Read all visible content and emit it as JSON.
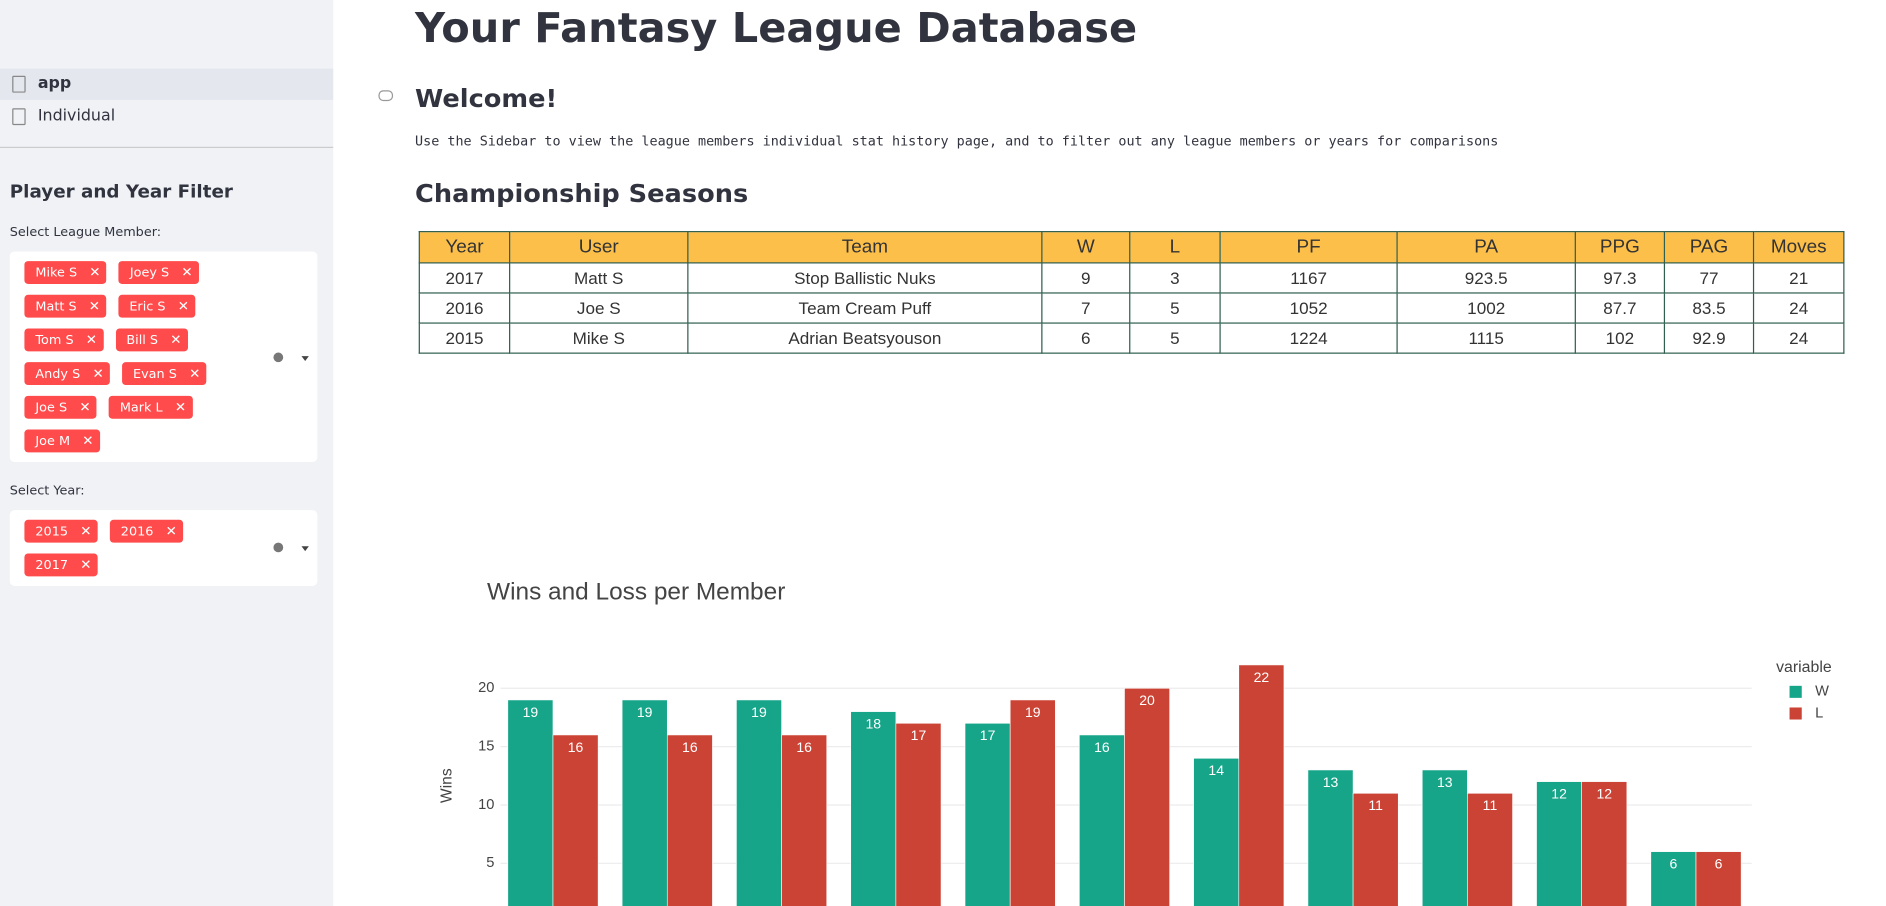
{
  "sidebar": {
    "nav": [
      "app",
      "Individual"
    ],
    "filter_title": "Player and Year Filter",
    "member_label": "Select League Member:",
    "members": [
      "Mike S",
      "Joey S",
      "Matt S",
      "Eric S",
      "Tom S",
      "Bill S",
      "Andy S",
      "Evan S",
      "Joe S",
      "Mark L",
      "Joe M"
    ],
    "year_label": "Select Year:",
    "years": [
      "2015",
      "2016",
      "2017"
    ]
  },
  "header": {
    "title": "Your Fantasy League Database",
    "welcome": "Welcome!",
    "description": "Use the Sidebar to view the league members individual stat history page, and to filter out any league members or years for comparisons",
    "section": "Championship Seasons"
  },
  "table": {
    "columns": [
      "Year",
      "User",
      "Team",
      "W",
      "L",
      "PF",
      "PA",
      "PPG",
      "PAG",
      "Moves"
    ],
    "rows": [
      [
        2017,
        "Matt S",
        "Stop Ballistic Nuks",
        9,
        3,
        1167,
        923.5,
        97.3,
        77,
        21
      ],
      [
        2016,
        "Joe S",
        "Team Cream Puff",
        7,
        5,
        1052,
        1002,
        87.7,
        83.5,
        24
      ],
      [
        2015,
        "Mike S",
        "Adrian Beatsyouson",
        6,
        5,
        1224,
        1115,
        102,
        92.9,
        24
      ]
    ]
  },
  "chart_data": {
    "type": "bar",
    "title": "Wins and Loss per Member",
    "y_label": "Wins",
    "legend_title": "variable",
    "categories": [
      null,
      null,
      null,
      null,
      null,
      null,
      null,
      null,
      null,
      null,
      null
    ],
    "series": [
      {
        "name": "W",
        "color": "#17a589",
        "values": [
          19,
          19,
          19,
          18,
          17,
          16,
          14,
          13,
          13,
          12,
          6
        ]
      },
      {
        "name": "L",
        "color": "#cb4335",
        "values": [
          16,
          16,
          16,
          17,
          19,
          20,
          22,
          11,
          11,
          12,
          6
        ]
      }
    ],
    "ylim": [
      0,
      23.2
    ],
    "yticks": [
      5,
      10,
      15,
      20
    ],
    "grid": true
  }
}
